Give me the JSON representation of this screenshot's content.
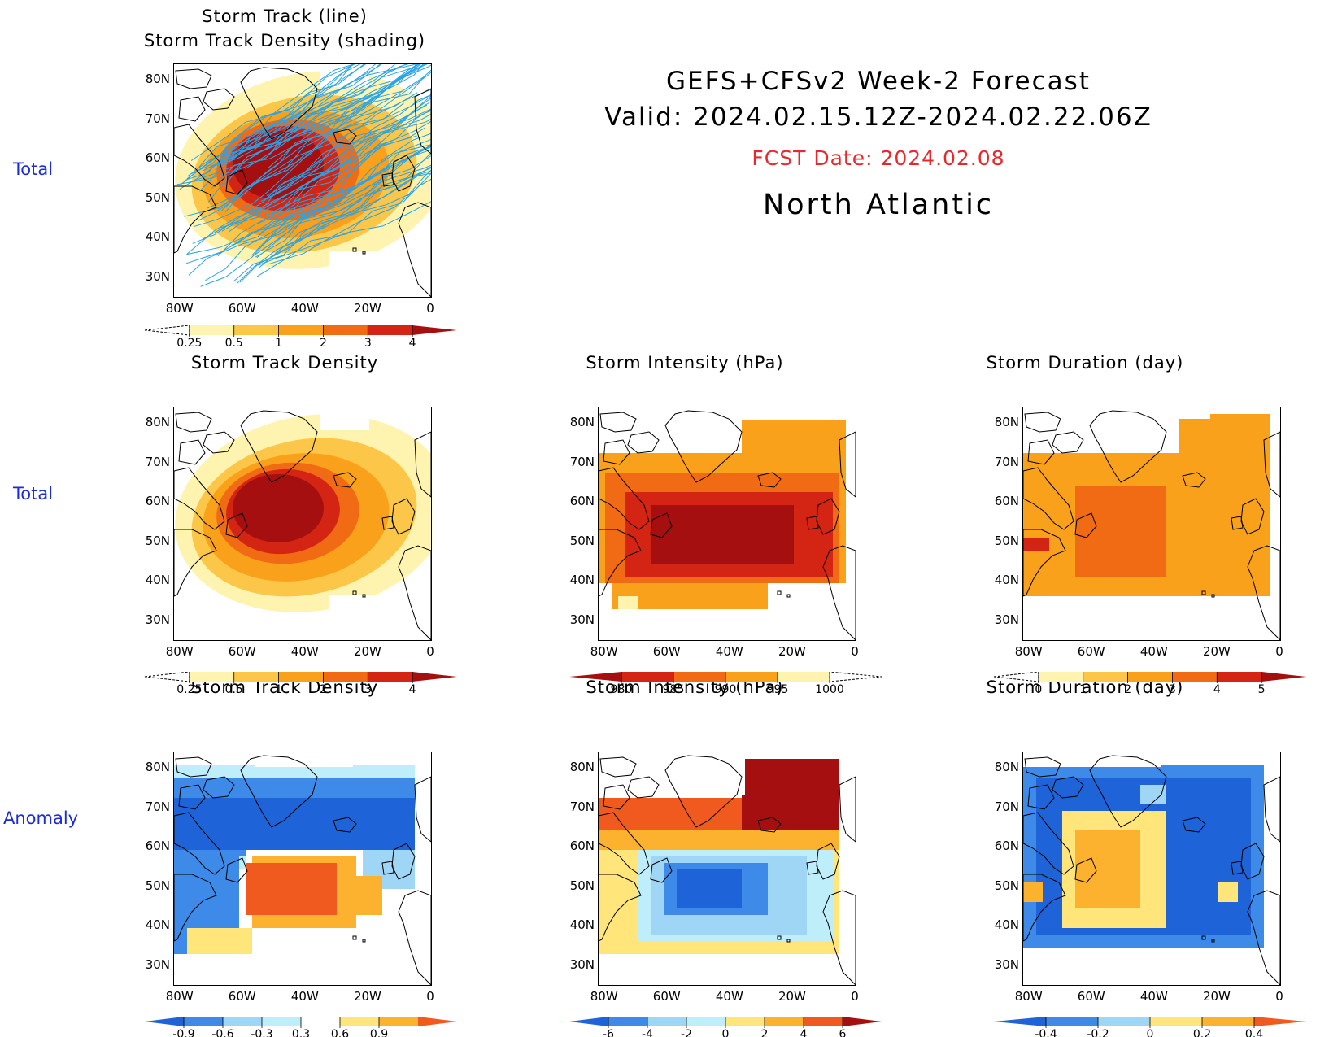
{
  "header": {
    "line1": "GEFS+CFSv2 Week-2 Forecast",
    "line2": "Valid: 2024.02.15.12Z-2024.02.22.06Z",
    "fcst": "FCST Date: 2024.02.08",
    "region": "North Atlantic",
    "fcst_color": "#e8282a"
  },
  "row_labels": {
    "row1": "Total",
    "row2": "Total",
    "row3": "Anomaly"
  },
  "panel_titles": {
    "p1_line1": "Storm Track (line)",
    "p1_line2": "Storm Track Density (shading)",
    "p2": "Storm Track Density",
    "p3": "Storm Intensity (hPa)",
    "p4": "Storm Duration (day)",
    "p5": "Storm Track Density",
    "p6": "Storm Intensity (hPa)",
    "p7": "Storm Duration (day)"
  },
  "axes": {
    "lat_labels": [
      "80N",
      "70N",
      "60N",
      "50N",
      "40N",
      "30N"
    ],
    "lon_labels": [
      "80W",
      "60W",
      "40W",
      "20W",
      "0"
    ]
  },
  "colorbars": {
    "density_total": {
      "labels": [
        "0.25",
        "0.5",
        "1",
        "2",
        "3",
        "4"
      ],
      "colors": [
        "#ffffff",
        "#fff3b0",
        "#fcc748",
        "#f9a11b",
        "#f06b14",
        "#d32414",
        "#a50f0f"
      ]
    },
    "intensity_total": {
      "labels": [
        "980",
        "985",
        "990",
        "995",
        "1000"
      ],
      "colors": [
        "#a50f0f",
        "#d32414",
        "#f06b14",
        "#f9a11b",
        "#fff3b0",
        "#ffffff"
      ]
    },
    "duration_total": {
      "labels": [
        "0",
        "1",
        "2",
        "3",
        "4",
        "5"
      ],
      "colors": [
        "#ffffff",
        "#fff3b0",
        "#fcc748",
        "#f9a11b",
        "#f06b14",
        "#d32414",
        "#a50f0f"
      ]
    },
    "density_anom": {
      "labels": [
        "-0.9",
        "-0.6",
        "-0.3",
        "0.3",
        "0.6",
        "0.9"
      ],
      "colors": [
        "#1f63d8",
        "#3e8ae8",
        "#9fd5f5",
        "#bfeefb",
        "#ffffff",
        "#ffe57a",
        "#fcb22e",
        "#f05a1e"
      ]
    },
    "intensity_anom": {
      "labels": [
        "-6",
        "-4",
        "-2",
        "0",
        "2",
        "4",
        "6"
      ],
      "colors": [
        "#1f63d8",
        "#3e8ae8",
        "#9fd5f5",
        "#bfeefb",
        "#ffe57a",
        "#fcb22e",
        "#f05a1e",
        "#a50f0f"
      ]
    },
    "duration_anom": {
      "labels": [
        "-0.4",
        "-0.2",
        "0",
        "0.2",
        "0.4"
      ],
      "colors": [
        "#1f63d8",
        "#3e8ae8",
        "#9fd5f5",
        "#ffe57a",
        "#fcb22e",
        "#f05a1e"
      ]
    }
  }
}
